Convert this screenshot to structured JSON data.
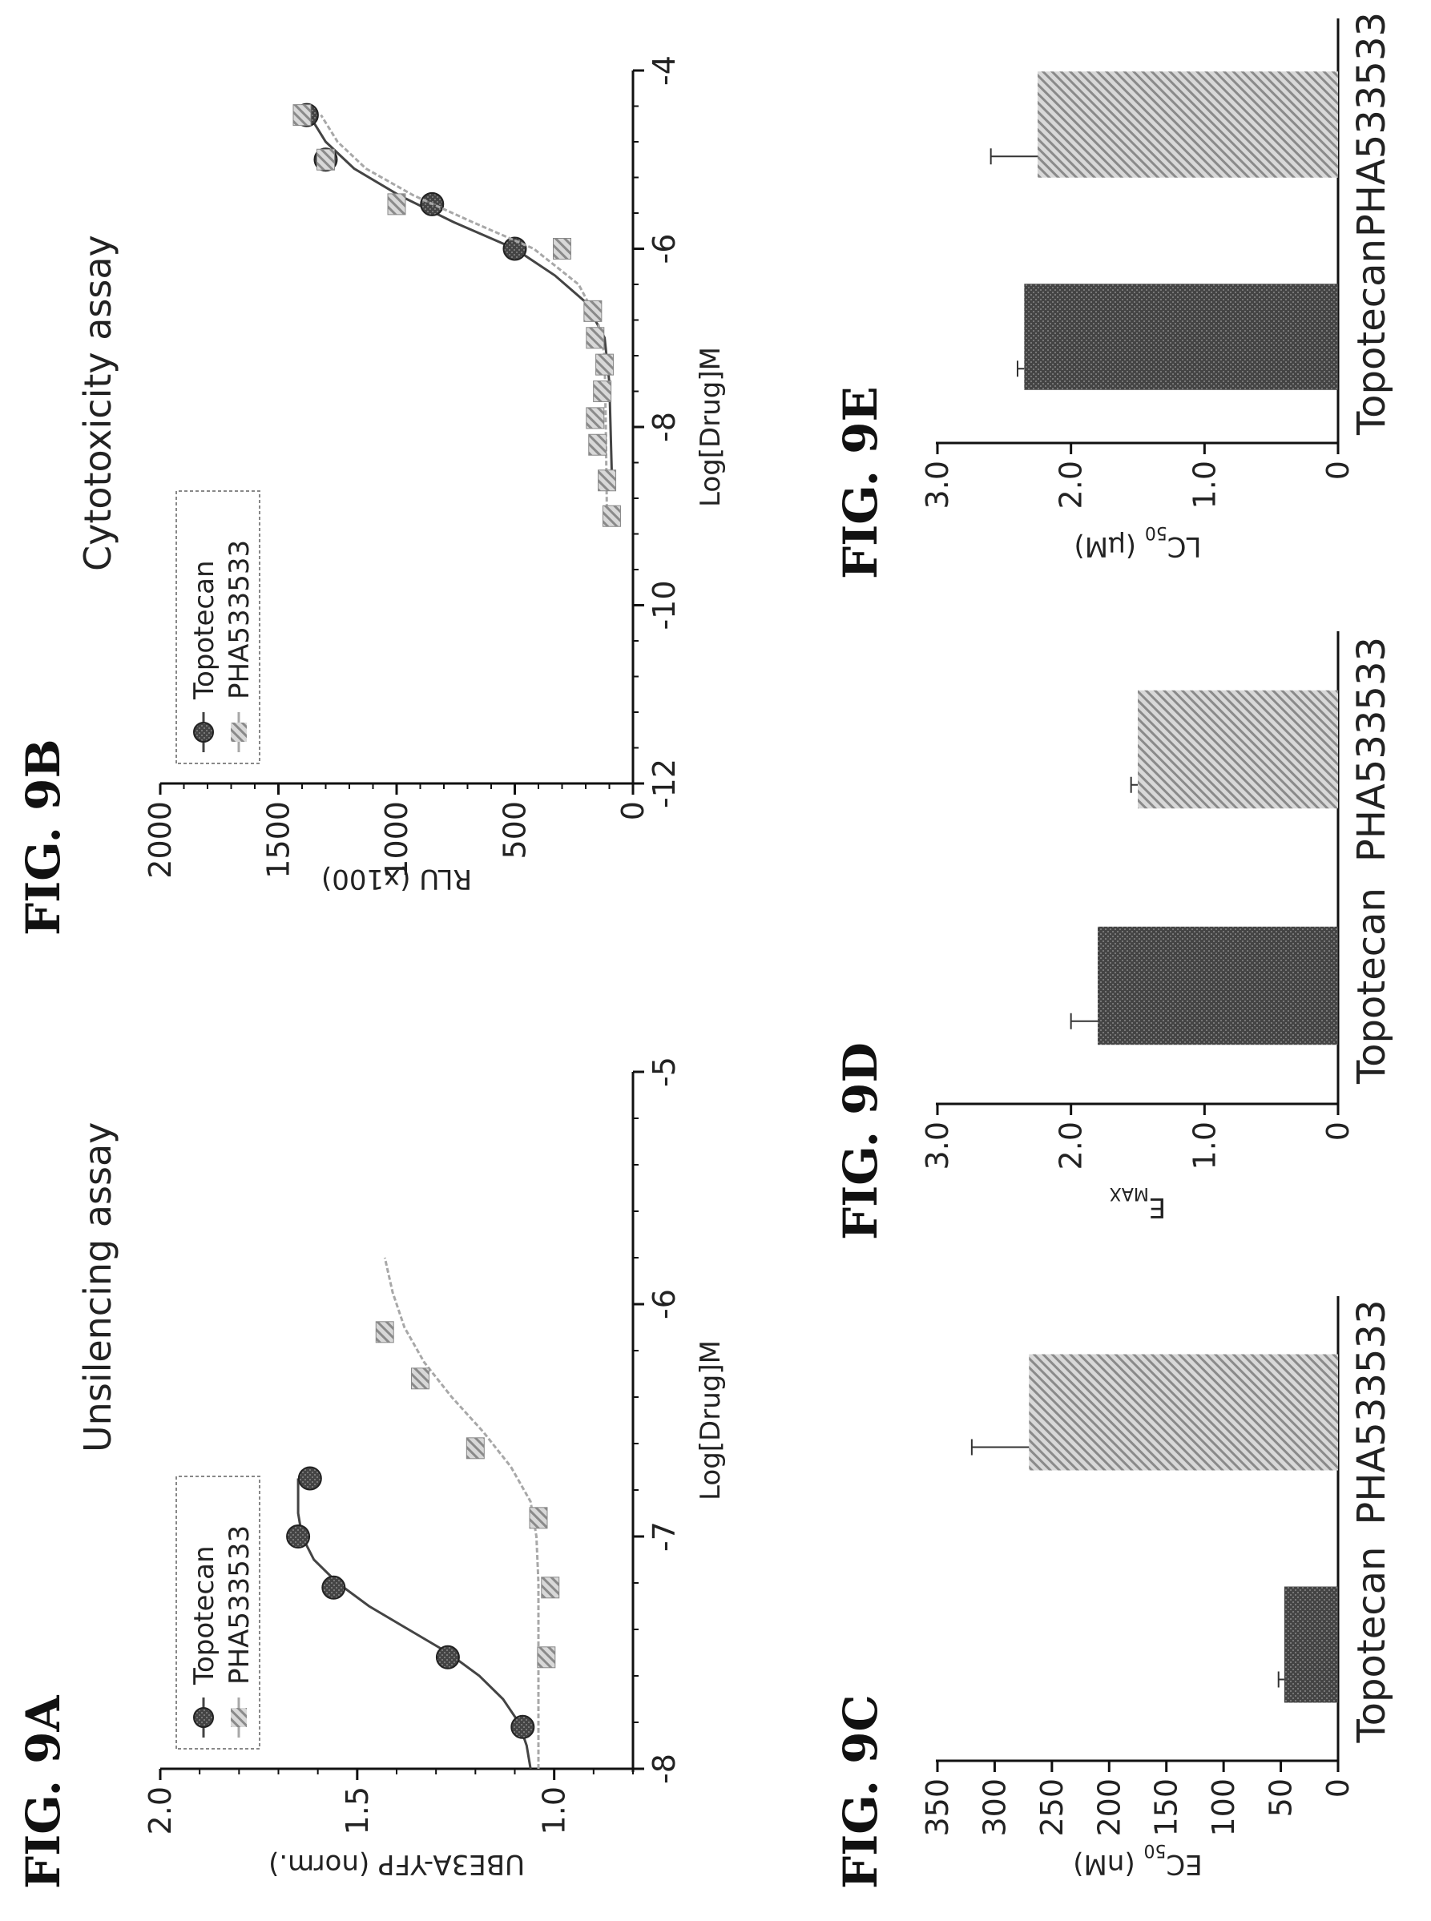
{
  "figure_labels": {
    "a": "FIG. 9A",
    "b": "FIG. 9B",
    "c": "FIG. 9C",
    "d": "FIG. 9D",
    "e": "FIG. 9E"
  },
  "colors": {
    "topotecan": "#444444",
    "pha533533": "#a8a8a8",
    "axis": "#111111"
  },
  "chart_data": [
    {
      "id": "9A",
      "type": "scatter",
      "title": "Unsilencing assay",
      "xlabel": "Log[Drug]M",
      "ylabel": "UBE3A-YFP (norm.)",
      "xlim": [
        -8,
        -5
      ],
      "ylim": [
        0.8,
        2.0
      ],
      "x_ticks": [
        -8,
        -7,
        -6,
        -5
      ],
      "x_tick_labels": [
        "-8",
        "-7",
        "-6",
        "-5"
      ],
      "y_ticks": [
        1.0,
        1.5,
        2.0
      ],
      "y_tick_labels": [
        "1.0",
        "1.5",
        "2.0"
      ],
      "legend": "top-left",
      "grid": false,
      "series": [
        {
          "name": "Topotecan",
          "marker": "circle",
          "x": [
            -7.82,
            -7.52,
            -7.22,
            -7.0,
            -6.75
          ],
          "y": [
            1.08,
            1.27,
            1.56,
            1.65,
            1.62
          ],
          "fit": [
            [
              -8.0,
              1.06
            ],
            [
              -7.9,
              1.07
            ],
            [
              -7.8,
              1.09
            ],
            [
              -7.7,
              1.13
            ],
            [
              -7.6,
              1.19
            ],
            [
              -7.5,
              1.27
            ],
            [
              -7.4,
              1.37
            ],
            [
              -7.3,
              1.47
            ],
            [
              -7.2,
              1.55
            ],
            [
              -7.1,
              1.61
            ],
            [
              -7.0,
              1.64
            ],
            [
              -6.9,
              1.65
            ],
            [
              -6.75,
              1.65
            ]
          ]
        },
        {
          "name": "PHA533533",
          "marker": "square",
          "x": [
            -7.52,
            -7.22,
            -6.92,
            -6.62,
            -6.32,
            -6.12
          ],
          "y": [
            1.02,
            1.01,
            1.04,
            1.2,
            1.34,
            1.43
          ],
          "fit": [
            [
              -8.0,
              1.04
            ],
            [
              -7.5,
              1.04
            ],
            [
              -7.2,
              1.04
            ],
            [
              -7.0,
              1.045
            ],
            [
              -6.85,
              1.06
            ],
            [
              -6.7,
              1.11
            ],
            [
              -6.55,
              1.18
            ],
            [
              -6.4,
              1.26
            ],
            [
              -6.25,
              1.33
            ],
            [
              -6.1,
              1.38
            ],
            [
              -5.95,
              1.41
            ],
            [
              -5.8,
              1.43
            ]
          ]
        }
      ]
    },
    {
      "id": "9B",
      "type": "scatter",
      "title": "Cytotoxicity assay",
      "xlabel": "Log[Drug]M",
      "ylabel": "RLU (x100)",
      "xlim": [
        -12,
        -4
      ],
      "ylim": [
        0,
        2000
      ],
      "x_ticks": [
        -12,
        -10,
        -8,
        -6,
        -4
      ],
      "x_tick_labels": [
        "-12",
        "-10",
        "-8",
        "-6",
        "-4"
      ],
      "y_ticks": [
        0,
        500,
        1000,
        1500,
        2000
      ],
      "y_tick_labels": [
        "0",
        "500",
        "1000",
        "1500",
        "2000"
      ],
      "legend": "top-left",
      "grid": false,
      "series": [
        {
          "name": "Topotecan",
          "marker": "circle",
          "x": [
            -6.0,
            -5.5,
            -5.0,
            -4.5
          ],
          "y": [
            500,
            850,
            1300,
            1380
          ],
          "fit": [
            [
              -8.5,
              90
            ],
            [
              -7.5,
              100
            ],
            [
              -7.0,
              120
            ],
            [
              -6.6,
              200
            ],
            [
              -6.3,
              330
            ],
            [
              -6.0,
              500
            ],
            [
              -5.7,
              760
            ],
            [
              -5.4,
              990
            ],
            [
              -5.1,
              1180
            ],
            [
              -4.8,
              1300
            ],
            [
              -4.5,
              1370
            ]
          ]
        },
        {
          "name": "PHA533533",
          "marker": "square",
          "x": [
            -9.0,
            -8.6,
            -8.2,
            -7.9,
            -7.6,
            -7.3,
            -7.0,
            -6.7,
            -6.0,
            -5.5,
            -5.0,
            -4.5
          ],
          "y": [
            90,
            110,
            150,
            160,
            130,
            120,
            160,
            170,
            300,
            1000,
            1300,
            1400
          ],
          "fit": [
            [
              -9.0,
              110
            ],
            [
              -8.0,
              115
            ],
            [
              -7.2,
              120
            ],
            [
              -6.8,
              150
            ],
            [
              -6.4,
              230
            ],
            [
              -6.0,
              420
            ],
            [
              -5.7,
              680
            ],
            [
              -5.4,
              930
            ],
            [
              -5.1,
              1130
            ],
            [
              -4.8,
              1250
            ],
            [
              -4.5,
              1320
            ]
          ]
        }
      ]
    },
    {
      "id": "9C",
      "type": "bar",
      "ylabel_main": "EC",
      "ylabel_sub": "50",
      "ylabel_unit": " (nM)",
      "categories": [
        "Topotecan",
        "PHA533533"
      ],
      "values": [
        47,
        270
      ],
      "errors": [
        5,
        50
      ],
      "ylim": [
        0,
        350
      ],
      "y_ticks": [
        0,
        50,
        100,
        150,
        200,
        250,
        300,
        350
      ],
      "y_tick_labels": [
        "0",
        "50",
        "100",
        "150",
        "200",
        "250",
        "300",
        "350"
      ]
    },
    {
      "id": "9D",
      "type": "bar",
      "ylabel_main": "E",
      "ylabel_sub": "MAX",
      "ylabel_unit": "",
      "categories": [
        "Topotecan",
        "PHA533533"
      ],
      "values": [
        1.8,
        1.5
      ],
      "errors": [
        0.2,
        0.05
      ],
      "ylim": [
        0,
        3.0
      ],
      "y_ticks": [
        0,
        1.0,
        2.0,
        3.0
      ],
      "y_tick_labels": [
        "0",
        "1.0",
        "2.0",
        "3.0"
      ]
    },
    {
      "id": "9E",
      "type": "bar",
      "ylabel_main": "LC",
      "ylabel_sub": "50",
      "ylabel_unit": " (µM)",
      "categories": [
        "Topotecan",
        "PHA533533"
      ],
      "values": [
        2.35,
        2.25
      ],
      "errors": [
        0.05,
        0.35
      ],
      "ylim": [
        0,
        3.0
      ],
      "y_ticks": [
        0,
        1.0,
        2.0,
        3.0
      ],
      "y_tick_labels": [
        "0",
        "1.0",
        "2.0",
        "3.0"
      ]
    }
  ]
}
